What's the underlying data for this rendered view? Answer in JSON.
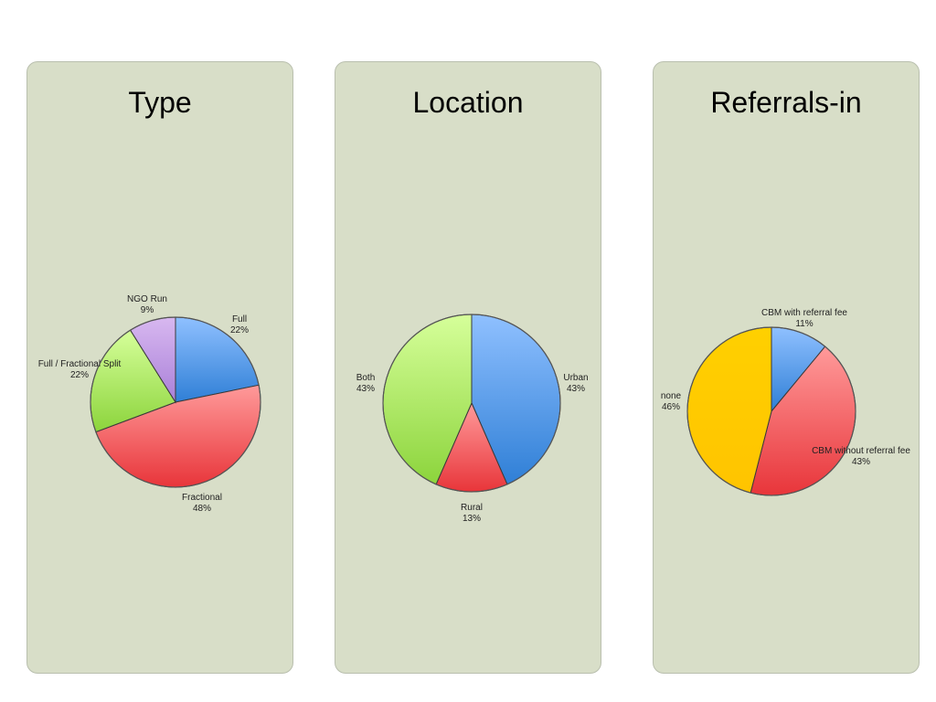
{
  "chart_data": [
    {
      "type": "pie",
      "title": "Type",
      "slices": [
        {
          "label": "Full",
          "value": 22,
          "pct_label": "22%",
          "color_top": "#8fc0ff",
          "color_bottom": "#2f7fd6"
        },
        {
          "label": "Fractional",
          "value": 48,
          "pct_label": "48%",
          "color_top": "#ff9a9a",
          "color_bottom": "#e8353a"
        },
        {
          "label": "Full / Fractional Split",
          "value": 22,
          "pct_label": "22%",
          "color_top": "#d6ff9a",
          "color_bottom": "#8cd43c"
        },
        {
          "label": "NGO Run",
          "value": 9,
          "pct_label": "9%",
          "color_top": "#d8b8f0",
          "color_bottom": "#a980d8"
        }
      ]
    },
    {
      "type": "pie",
      "title": "Location",
      "slices": [
        {
          "label": "Urban",
          "value": 43,
          "pct_label": "43%",
          "color_top": "#8fc0ff",
          "color_bottom": "#2f7fd6"
        },
        {
          "label": "Rural",
          "value": 13,
          "pct_label": "13%",
          "color_top": "#ff9a9a",
          "color_bottom": "#e8353a"
        },
        {
          "label": "Both",
          "value": 43,
          "pct_label": "43%",
          "color_top": "#d6ff9a",
          "color_bottom": "#8cd43c"
        }
      ]
    },
    {
      "type": "pie",
      "title": "Referrals-in",
      "slices": [
        {
          "label": "CBM with referral fee",
          "value": 11,
          "pct_label": "11%",
          "color_top": "#8fc0ff",
          "color_bottom": "#2f7fd6"
        },
        {
          "label": "CBM without referral fee",
          "value": 43,
          "pct_label": "43%",
          "color_top": "#ff9a9a",
          "color_bottom": "#e8353a"
        },
        {
          "label": "none",
          "value": 46,
          "pct_label": "46%",
          "color_top": "#ffd000",
          "color_bottom": "#ffc400"
        }
      ]
    }
  ]
}
